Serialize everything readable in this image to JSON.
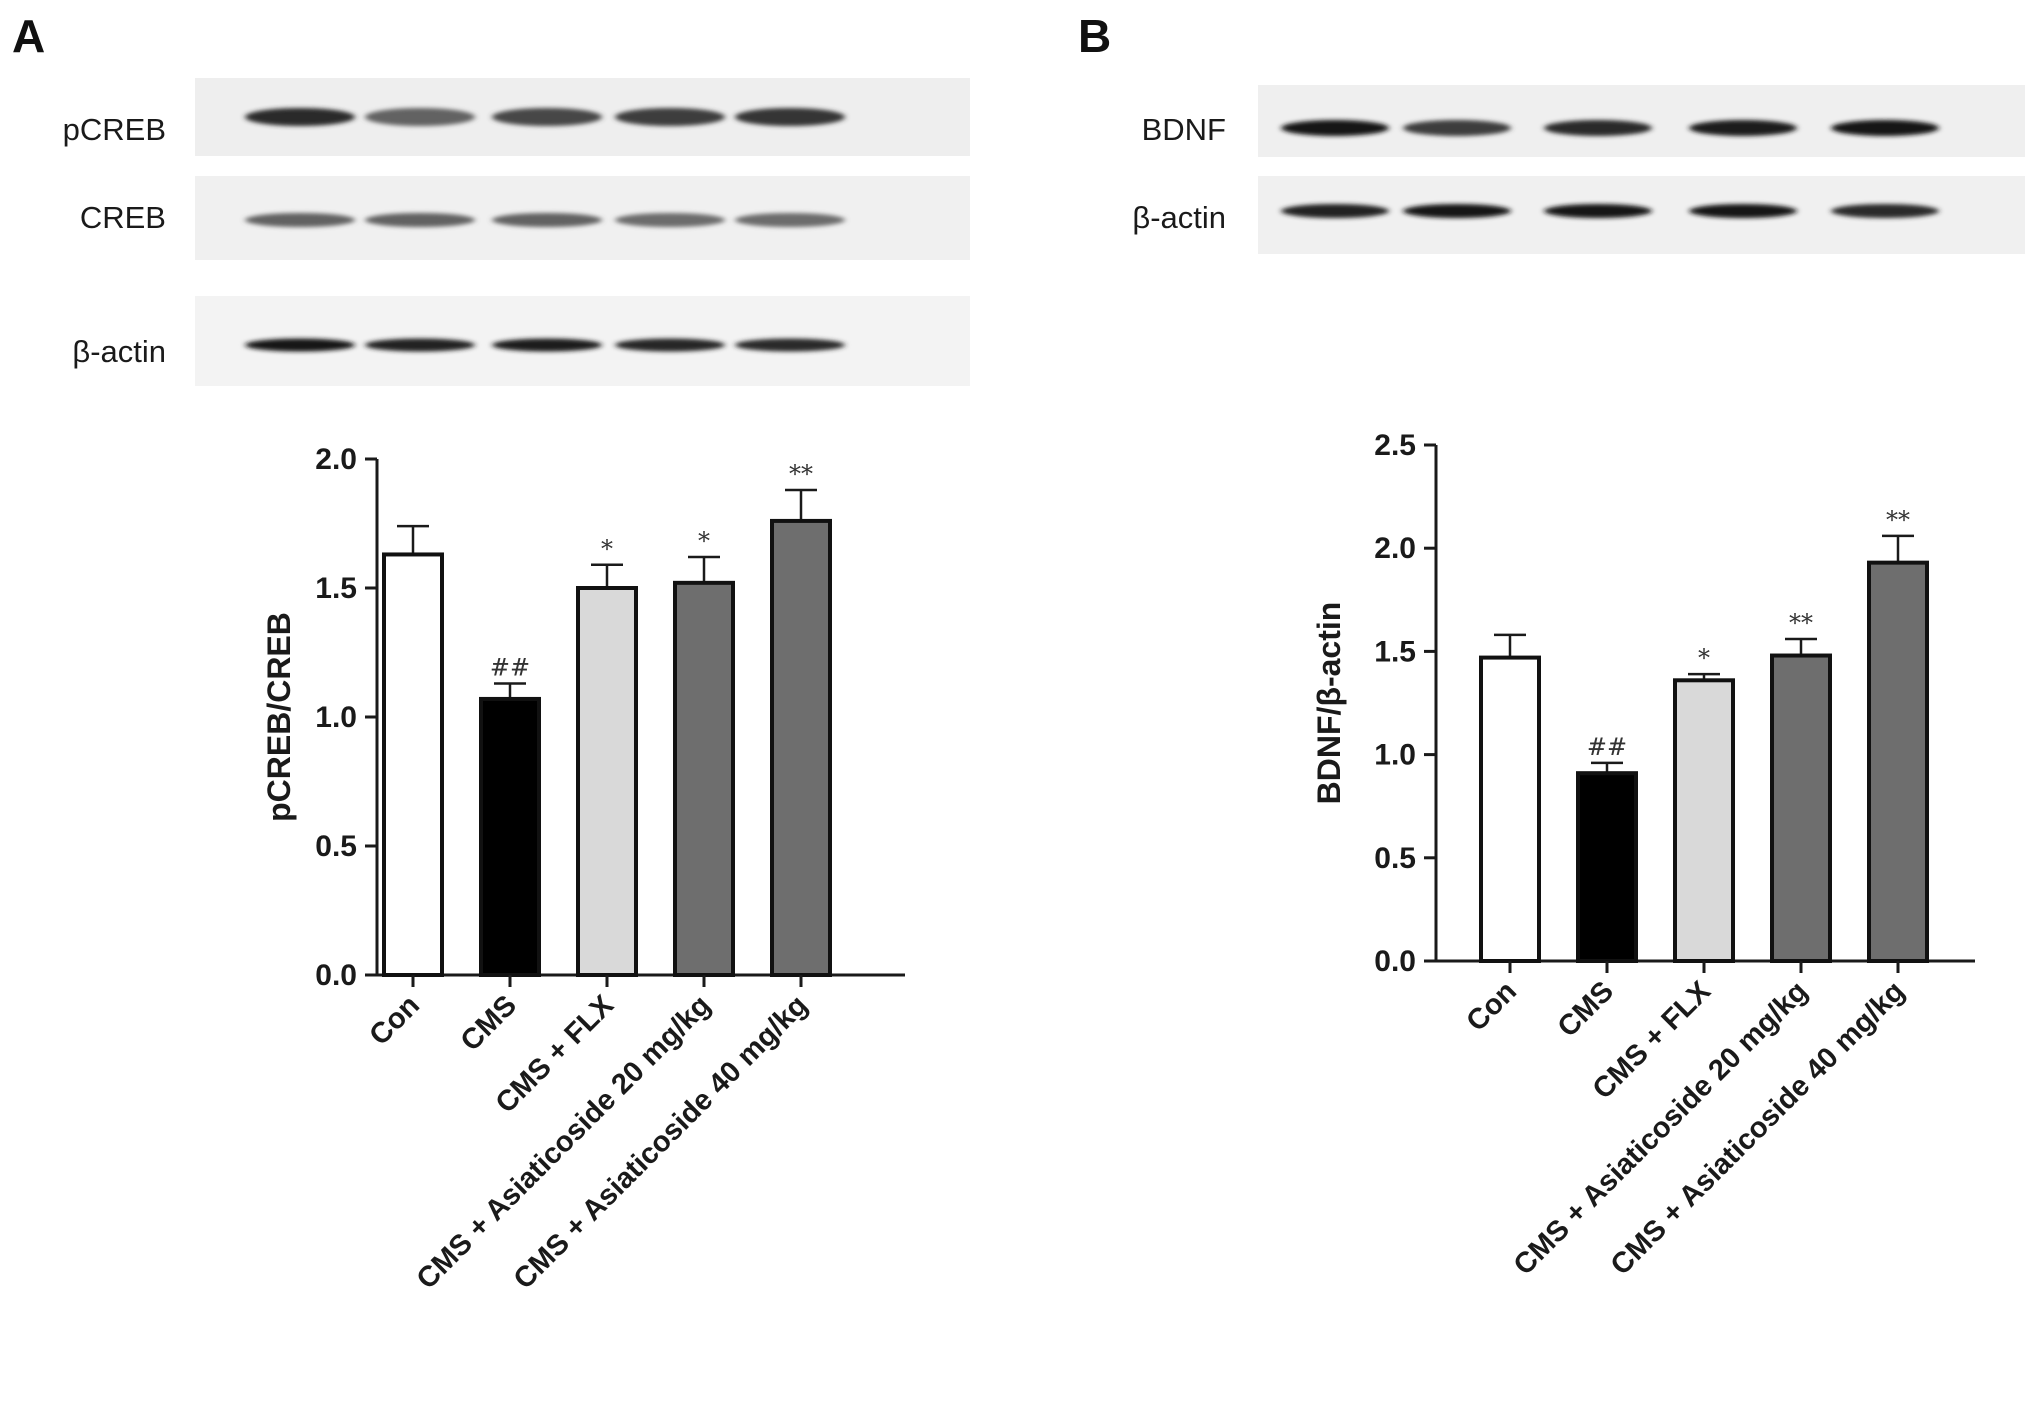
{
  "panels": [
    {
      "letter": "A",
      "blot_labels": [
        "pCREB",
        "CREB",
        "β-actin"
      ],
      "bands": {
        "pCREB": [
          0.85,
          0.55,
          0.7,
          0.75,
          0.8
        ],
        "CREB": [
          0.55,
          0.55,
          0.55,
          0.5,
          0.5
        ],
        "β-actin": [
          0.95,
          0.9,
          0.92,
          0.88,
          0.85
        ]
      }
    },
    {
      "letter": "B",
      "blot_labels": [
        "BDNF",
        "β-actin"
      ],
      "bands": {
        "BDNF": [
          0.95,
          0.75,
          0.85,
          0.92,
          0.98
        ],
        "β-actin": [
          0.9,
          0.95,
          0.97,
          0.95,
          0.85
        ]
      }
    }
  ],
  "chart_data": [
    {
      "type": "bar",
      "categories": [
        "Con",
        "CMS",
        "CMS + FLX",
        "CMS + Asiaticoside 20 mg/kg",
        "CMS + Asiaticoside 40 mg/kg"
      ],
      "values": [
        1.63,
        1.07,
        1.5,
        1.52,
        1.76
      ],
      "errors": [
        0.11,
        0.06,
        0.09,
        0.1,
        0.12
      ],
      "annotations": [
        "",
        "##",
        "*",
        "*",
        "**"
      ],
      "bar_colors": [
        "#ffffff",
        "#000000",
        "#d9d9d9",
        "#6e6e6e",
        "#6e6e6e"
      ],
      "ylabel": "pCREB/CREB",
      "xlabel": "",
      "ylim": [
        0,
        2.0
      ],
      "yticks": [
        "0.0",
        "0.5",
        "1.0",
        "1.5",
        "2.0"
      ],
      "grid": false,
      "legend": "none"
    },
    {
      "type": "bar",
      "categories": [
        "Con",
        "CMS",
        "CMS + FLX",
        "CMS + Asiaticoside 20 mg/kg",
        "CMS + Asiaticoside 40 mg/kg"
      ],
      "values": [
        1.47,
        0.91,
        1.36,
        1.48,
        1.93
      ],
      "errors": [
        0.11,
        0.05,
        0.03,
        0.08,
        0.13
      ],
      "annotations": [
        "",
        "##",
        "*",
        "**",
        "**"
      ],
      "bar_colors": [
        "#ffffff",
        "#000000",
        "#d9d9d9",
        "#6e6e6e",
        "#6e6e6e"
      ],
      "ylabel": "BDNF/β-actin",
      "xlabel": "",
      "ylim": [
        0,
        2.5
      ],
      "yticks": [
        "0.0",
        "0.5",
        "1.0",
        "1.5",
        "2.0",
        "2.5"
      ],
      "grid": false,
      "legend": "none"
    }
  ]
}
